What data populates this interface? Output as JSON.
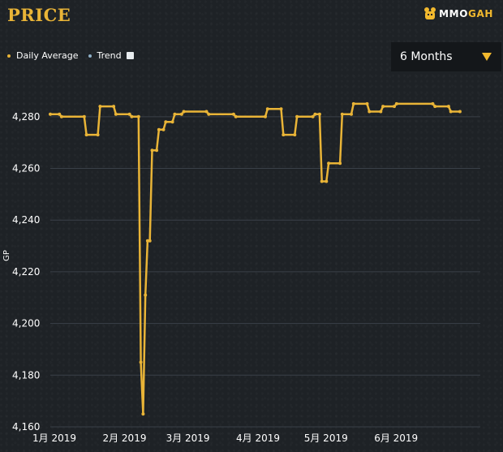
{
  "header": {
    "title": "PRICE",
    "logo": {
      "brand_left": "MMO",
      "brand_right": "GAH",
      "icon": "mascot-icon"
    }
  },
  "legend": {
    "items": [
      {
        "label": "Daily Average",
        "color": "#e9b437"
      },
      {
        "label": "Trend",
        "color": "#8fb0c8"
      }
    ]
  },
  "range_select": {
    "value": "6 Months"
  },
  "colors": {
    "line": "#e9b437",
    "grid": "#3a4048",
    "axis_text": "#ffffff",
    "background": "#1e2226"
  },
  "chart_data": {
    "type": "line",
    "ylabel": "GP",
    "xlabel": "",
    "ylim": [
      4160,
      4290
    ],
    "xlim": [
      "2019-01-01",
      "2019-07-10"
    ],
    "y_ticks": [
      4160,
      4180,
      4200,
      4220,
      4240,
      4260,
      4280
    ],
    "y_tick_labels": [
      "4,160",
      "4,180",
      "4,200",
      "4,220",
      "4,240",
      "4,260",
      "4,280"
    ],
    "x_ticks": [
      "2019-01-01",
      "2019-02-01",
      "2019-03-01",
      "2019-04-01",
      "2019-05-01",
      "2019-06-01"
    ],
    "x_tick_labels": [
      "1月 2019",
      "2月 2019",
      "3月 2019",
      "4月 2019",
      "5月 2019",
      "6月 2019"
    ],
    "grid": true,
    "legend_position": "top-left",
    "series": [
      {
        "name": "Daily Average",
        "points": [
          [
            "2019-01-01",
            4281
          ],
          [
            "2019-01-05",
            4281
          ],
          [
            "2019-01-06",
            4280
          ],
          [
            "2019-01-16",
            4280
          ],
          [
            "2019-01-17",
            4273
          ],
          [
            "2019-01-22",
            4273
          ],
          [
            "2019-01-23",
            4284
          ],
          [
            "2019-01-29",
            4284
          ],
          [
            "2019-01-30",
            4281
          ],
          [
            "2019-02-05",
            4281
          ],
          [
            "2019-02-06",
            4280
          ],
          [
            "2019-02-09",
            4280
          ],
          [
            "2019-02-10",
            4185
          ],
          [
            "2019-02-11",
            4165
          ],
          [
            "2019-02-12",
            4211
          ],
          [
            "2019-02-13",
            4232
          ],
          [
            "2019-02-14",
            4232
          ],
          [
            "2019-02-15",
            4267
          ],
          [
            "2019-02-17",
            4267
          ],
          [
            "2019-02-18",
            4275
          ],
          [
            "2019-02-20",
            4275
          ],
          [
            "2019-02-21",
            4278
          ],
          [
            "2019-02-24",
            4278
          ],
          [
            "2019-02-25",
            4281
          ],
          [
            "2019-02-28",
            4281
          ],
          [
            "2019-03-01",
            4282
          ],
          [
            "2019-03-11",
            4282
          ],
          [
            "2019-03-12",
            4281
          ],
          [
            "2019-03-23",
            4281
          ],
          [
            "2019-03-24",
            4280
          ],
          [
            "2019-04-06",
            4280
          ],
          [
            "2019-04-07",
            4283
          ],
          [
            "2019-04-13",
            4283
          ],
          [
            "2019-04-14",
            4273
          ],
          [
            "2019-04-19",
            4273
          ],
          [
            "2019-04-20",
            4280
          ],
          [
            "2019-04-27",
            4280
          ],
          [
            "2019-04-28",
            4281
          ],
          [
            "2019-04-30",
            4281
          ],
          [
            "2019-05-01",
            4255
          ],
          [
            "2019-05-03",
            4255
          ],
          [
            "2019-05-04",
            4262
          ],
          [
            "2019-05-09",
            4262
          ],
          [
            "2019-05-10",
            4281
          ],
          [
            "2019-05-14",
            4281
          ],
          [
            "2019-05-15",
            4285
          ],
          [
            "2019-05-21",
            4285
          ],
          [
            "2019-05-22",
            4282
          ],
          [
            "2019-05-27",
            4282
          ],
          [
            "2019-05-28",
            4284
          ],
          [
            "2019-06-02",
            4284
          ],
          [
            "2019-06-03",
            4285
          ],
          [
            "2019-06-19",
            4285
          ],
          [
            "2019-06-20",
            4284
          ],
          [
            "2019-06-26",
            4284
          ],
          [
            "2019-06-27",
            4282
          ],
          [
            "2019-07-01",
            4282
          ]
        ]
      }
    ]
  }
}
